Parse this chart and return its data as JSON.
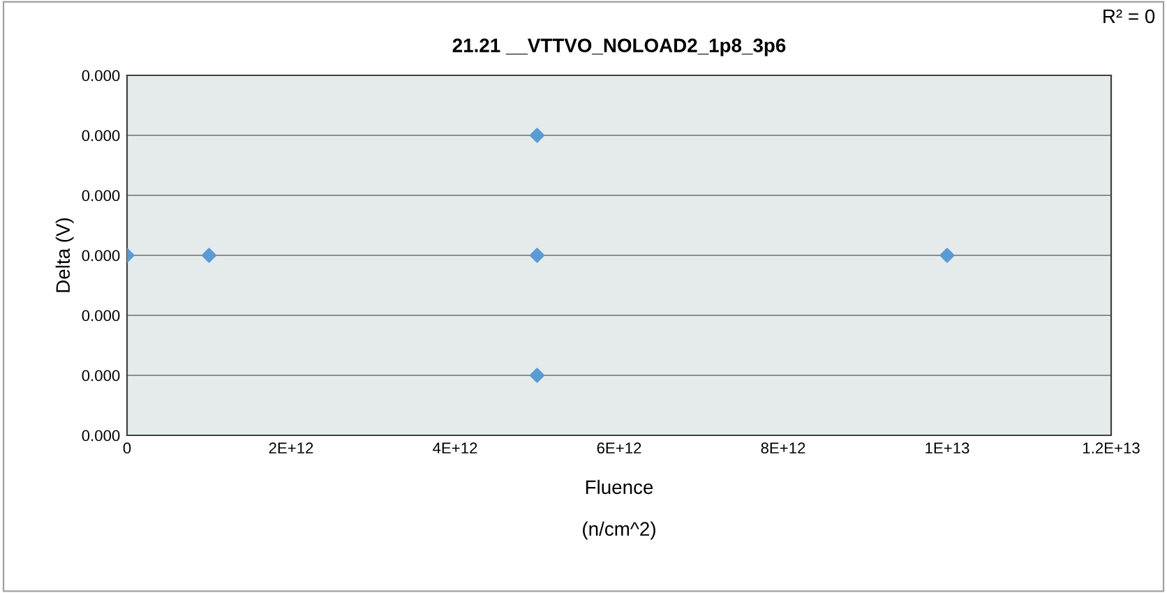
{
  "chart_data": {
    "type": "scatter",
    "title": "21.21 __VTTVO_NOLOAD2_1p8_3p6",
    "xlabel": "Fluence\n\n(n/cm^2)",
    "ylabel": "Delta (V)",
    "annotations": [
      "R² = 0"
    ],
    "series": [
      {
        "color": "#5b9bd5",
        "x": [
          0,
          1000000000000.0,
          5000000000000.0,
          5000000000000.0,
          5000000000000.0,
          10000000000000.0
        ],
        "values": [
          0.00024,
          0.00024,
          0.0004,
          0.00024,
          8e-05,
          0.00024
        ]
      }
    ],
    "xlim": [
      0,
      12000000000000.0
    ],
    "xticks": [
      0,
      {
        "value": 2000000000000.0,
        "label": "2E+12"
      },
      {
        "value": 4000000000000.0,
        "label": "4E+12"
      },
      {
        "value": 6000000000000.0,
        "label": "6E+12"
      },
      {
        "value": 8000000000000.0,
        "label": "8E+12"
      },
      {
        "value": 10000000000000.0,
        "label": "1E+13"
      },
      {
        "value": 12000000000000.0,
        "label": "1.2E+13"
      }
    ],
    "ylim": [
      0,
      0.00048
    ],
    "yticks": [
      {
        "value": 0,
        "label": "0.000"
      },
      {
        "value": 8e-05,
        "label": "0.000"
      },
      {
        "value": 0.00016,
        "label": "0.000"
      },
      {
        "value": 0.00024,
        "label": "0.000"
      },
      {
        "value": 0.00032,
        "label": "0.000"
      },
      {
        "value": 0.0004,
        "label": "0.000"
      },
      {
        "value": 0.00048,
        "label": "0.000"
      }
    ],
    "grid": "y",
    "marker": "diamond",
    "legend": false
  }
}
